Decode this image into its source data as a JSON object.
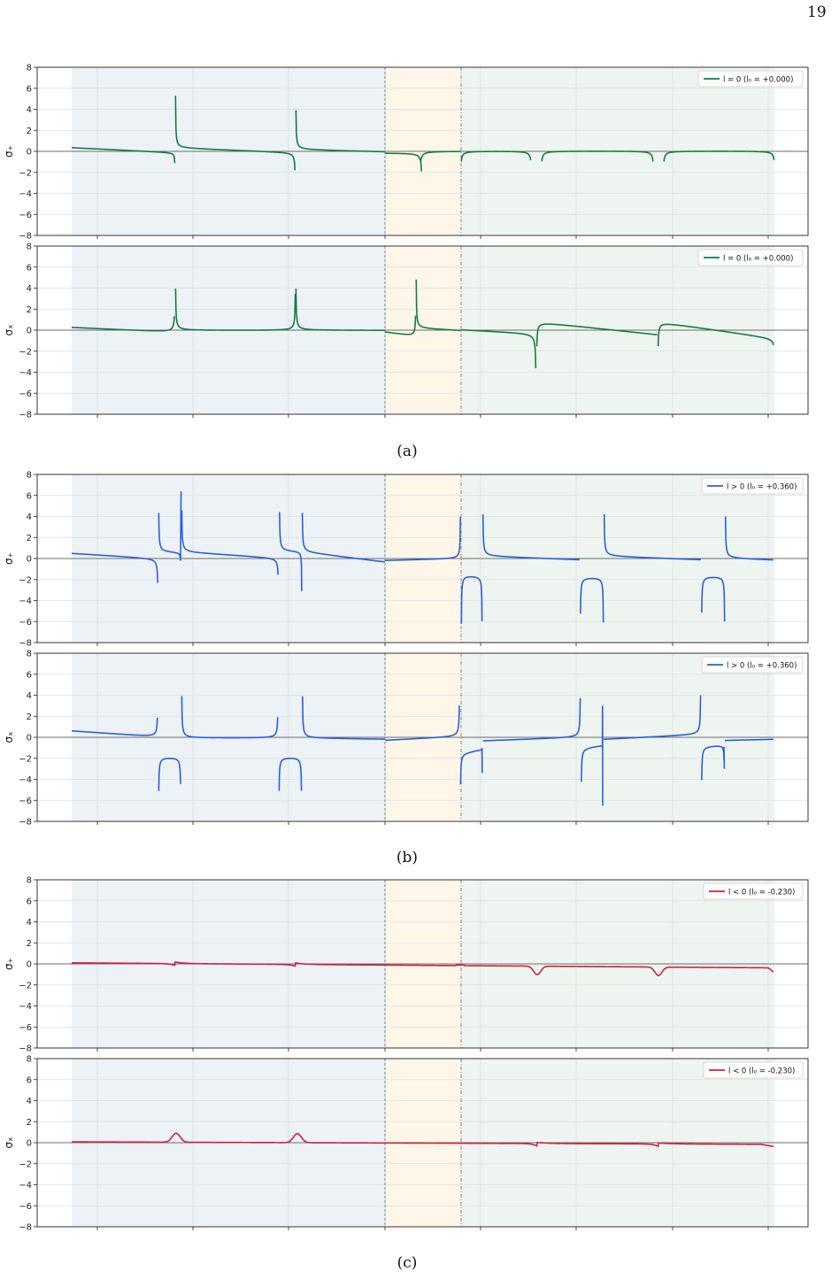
{
  "page": {
    "number": "19"
  },
  "captions": [
    "(a)",
    "(b)",
    "(c)"
  ],
  "colors": {
    "green": "#167c3e",
    "blue": "#2b5fd9",
    "red": "#d0213c",
    "region_left": "#edf2f7",
    "region_mid": "#fdf6e9",
    "region_right": "#eef5f1"
  },
  "chart_data": [
    {
      "type": "line",
      "panel": "a-top",
      "ylabel": "σ₊",
      "ylim": [
        -8,
        8
      ],
      "yticks": [
        -8,
        -6,
        -4,
        -2,
        0,
        2,
        4,
        6,
        8
      ],
      "grid": true,
      "legend_position": "top-right",
      "series": [
        {
          "name": "l = 0  (l₀ = +0.000)",
          "color": "#167c3e"
        }
      ]
    },
    {
      "type": "line",
      "panel": "a-bottom",
      "ylabel": "σₓ",
      "ylim": [
        -8,
        8
      ],
      "yticks": [
        -8,
        -6,
        -4,
        -2,
        0,
        2,
        4,
        6,
        8
      ],
      "grid": true,
      "legend_position": "top-right",
      "series": [
        {
          "name": "l = 0  (l₀ = +0.000)",
          "color": "#167c3e"
        }
      ]
    },
    {
      "type": "line",
      "panel": "b-top",
      "ylabel": "σ₊",
      "ylim": [
        -8,
        8
      ],
      "yticks": [
        -8,
        -6,
        -4,
        -2,
        0,
        2,
        4,
        6,
        8
      ],
      "grid": true,
      "legend_position": "top-right",
      "series": [
        {
          "name": "l > 0  (l₀ = +0.360)",
          "color": "#2b5fd9"
        }
      ]
    },
    {
      "type": "line",
      "panel": "b-bottom",
      "ylabel": "σₓ",
      "ylim": [
        -8,
        8
      ],
      "yticks": [
        -8,
        -6,
        -4,
        -2,
        0,
        2,
        4,
        6,
        8
      ],
      "grid": true,
      "legend_position": "top-right",
      "series": [
        {
          "name": "l > 0  (l₀ = +0.360)",
          "color": "#2b5fd9"
        }
      ]
    },
    {
      "type": "line",
      "panel": "c-top",
      "ylabel": "σ₊",
      "ylim": [
        -8,
        8
      ],
      "yticks": [
        -8,
        -6,
        -4,
        -2,
        0,
        2,
        4,
        6,
        8
      ],
      "grid": true,
      "legend_position": "top-right",
      "series": [
        {
          "name": "l < 0  (l₀ = -0.230)",
          "color": "#d0213c"
        }
      ]
    },
    {
      "type": "line",
      "panel": "c-bottom",
      "ylabel": "σₓ",
      "ylim": [
        -8,
        8
      ],
      "yticks": [
        -8,
        -6,
        -4,
        -2,
        0,
        2,
        4,
        6,
        8
      ],
      "grid": true,
      "legend_position": "top-right",
      "series": [
        {
          "name": "l < 0  (l₀ = -0.230)",
          "color": "#d0213c"
        }
      ]
    }
  ]
}
